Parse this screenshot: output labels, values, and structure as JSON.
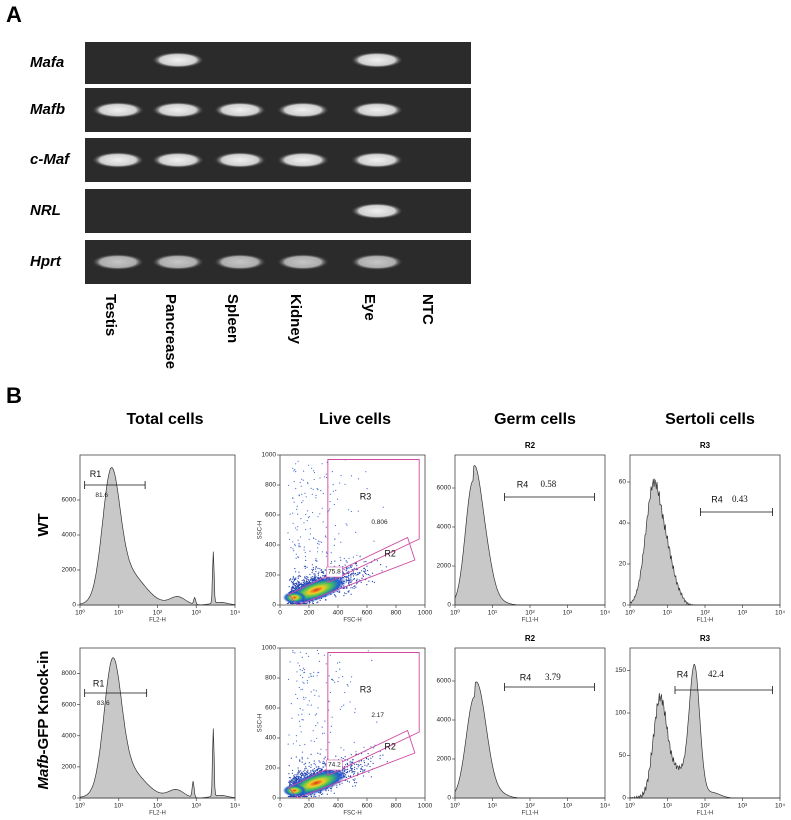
{
  "panel_a": {
    "label": "A",
    "genes": [
      "Mafa",
      "Mafb",
      "c-Maf",
      "NRL",
      "Hprt"
    ],
    "tissues": [
      "Testis",
      "Pancrease",
      "Spleen",
      "Kidney",
      "Eye",
      "NTC"
    ]
  },
  "panel_b": {
    "label": "B",
    "columns": [
      "Total cells",
      "Live cells",
      "Germ cells",
      "Sertoli cells"
    ],
    "rows": [
      {
        "text": "WT"
      },
      {
        "italic": "Mafb",
        "text": "-GFP Knock-in"
      }
    ],
    "plots": [
      {
        "x_label": "FL2-H",
        "xticks": [
          "10⁰",
          "10¹",
          "10²",
          "10³",
          "10⁴"
        ],
        "yticks": [
          "0",
          "2000",
          "4000",
          "6000"
        ],
        "gates": [
          {
            "name": "R1",
            "value": "81.6"
          }
        ]
      },
      {
        "x_label": "FSC-H",
        "y_label": "SSC-H",
        "xticks": [
          "0",
          "200",
          "400",
          "600",
          "800",
          "1000"
        ],
        "yticks": [
          "0",
          "200",
          "400",
          "600",
          "800",
          "1000"
        ],
        "gates": [
          {
            "name": "R3",
            "value": "0.806"
          },
          {
            "name": "R2",
            "value": "75.8"
          }
        ]
      },
      {
        "title": "R2",
        "x_label": "FL1-H",
        "xticks": [
          "10⁰",
          "10¹",
          "10²",
          "10³",
          "10⁴"
        ],
        "yticks": [
          "0",
          "2000",
          "4000",
          "6000"
        ],
        "gates": [
          {
            "name": "R4",
            "value": "0.58"
          }
        ]
      },
      {
        "title": "R3",
        "x_label": "FL1-H",
        "xticks": [
          "10⁰",
          "10¹",
          "10²",
          "10³",
          "10⁴"
        ],
        "yticks": [
          "0",
          "20",
          "40",
          "60"
        ],
        "gates": [
          {
            "name": "R4",
            "value": "0.43"
          }
        ]
      },
      {
        "x_label": "FL2-H",
        "xticks": [
          "10⁰",
          "10¹",
          "10²",
          "10³",
          "10⁴"
        ],
        "yticks": [
          "0",
          "2000",
          "4000",
          "6000",
          "8000"
        ],
        "gates": [
          {
            "name": "R1",
            "value": "83.6"
          }
        ]
      },
      {
        "x_label": "FSC-H",
        "y_label": "SSC-H",
        "xticks": [
          "0",
          "200",
          "400",
          "600",
          "800",
          "1000"
        ],
        "yticks": [
          "0",
          "200",
          "400",
          "600",
          "800",
          "1000"
        ],
        "gates": [
          {
            "name": "R3",
            "value": "2.17"
          },
          {
            "name": "R2",
            "value": "74.2"
          }
        ]
      },
      {
        "title": "R2",
        "x_label": "FL1-H",
        "xticks": [
          "10⁰",
          "10¹",
          "10²",
          "10³",
          "10⁴"
        ],
        "yticks": [
          "0",
          "2000",
          "4000",
          "6000"
        ],
        "gates": [
          {
            "name": "R4",
            "value": "3.79"
          }
        ]
      },
      {
        "title": "R3",
        "x_label": "FL1-H",
        "xticks": [
          "10⁰",
          "10¹",
          "10²",
          "10³",
          "10⁴"
        ],
        "yticks": [
          "0",
          "50",
          "100",
          "150"
        ],
        "gates": [
          {
            "name": "R4",
            "value": "42.4"
          }
        ]
      }
    ]
  }
}
